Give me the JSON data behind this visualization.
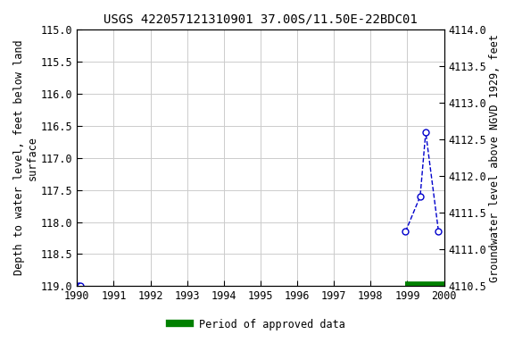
{
  "title": "USGS 422057121310901 37.00S/11.50E-22BDC01",
  "ylabel_left": "Depth to water level, feet below land\nsurface",
  "ylabel_right": "Groundwater level above NGVD 1929, feet",
  "xlim": [
    1990,
    2000
  ],
  "ylim_left": [
    119.0,
    115.0
  ],
  "ylim_right": [
    4110.5,
    4114.0
  ],
  "xticks": [
    1990,
    1991,
    1992,
    1993,
    1994,
    1995,
    1996,
    1997,
    1998,
    1999,
    2000
  ],
  "yticks_left": [
    115.0,
    115.5,
    116.0,
    116.5,
    117.0,
    117.5,
    118.0,
    118.5,
    119.0
  ],
  "yticks_right": [
    4110.5,
    4111.0,
    4111.5,
    4112.0,
    4112.5,
    4113.0,
    4113.5,
    4114.0
  ],
  "segments": [
    {
      "x": [
        1990.05,
        1990.1
      ],
      "y": [
        119.0,
        119.0
      ]
    },
    {
      "x": [
        1998.95,
        1999.35,
        1999.5,
        1999.85
      ],
      "y": [
        118.15,
        117.6,
        116.6,
        118.15
      ]
    }
  ],
  "line_color": "#0000cc",
  "marker_color": "#0000cc",
  "marker_face": "white",
  "background_color": "#ffffff",
  "grid_color": "#cccccc",
  "legend_label": "Period of approved data",
  "legend_color": "#008000",
  "bar_x_start": 1998.95,
  "bar_x_end": 2000.0,
  "bar_y": 119.0,
  "title_fontsize": 10,
  "axis_fontsize": 8.5,
  "tick_fontsize": 8.5,
  "font_family": "monospace"
}
